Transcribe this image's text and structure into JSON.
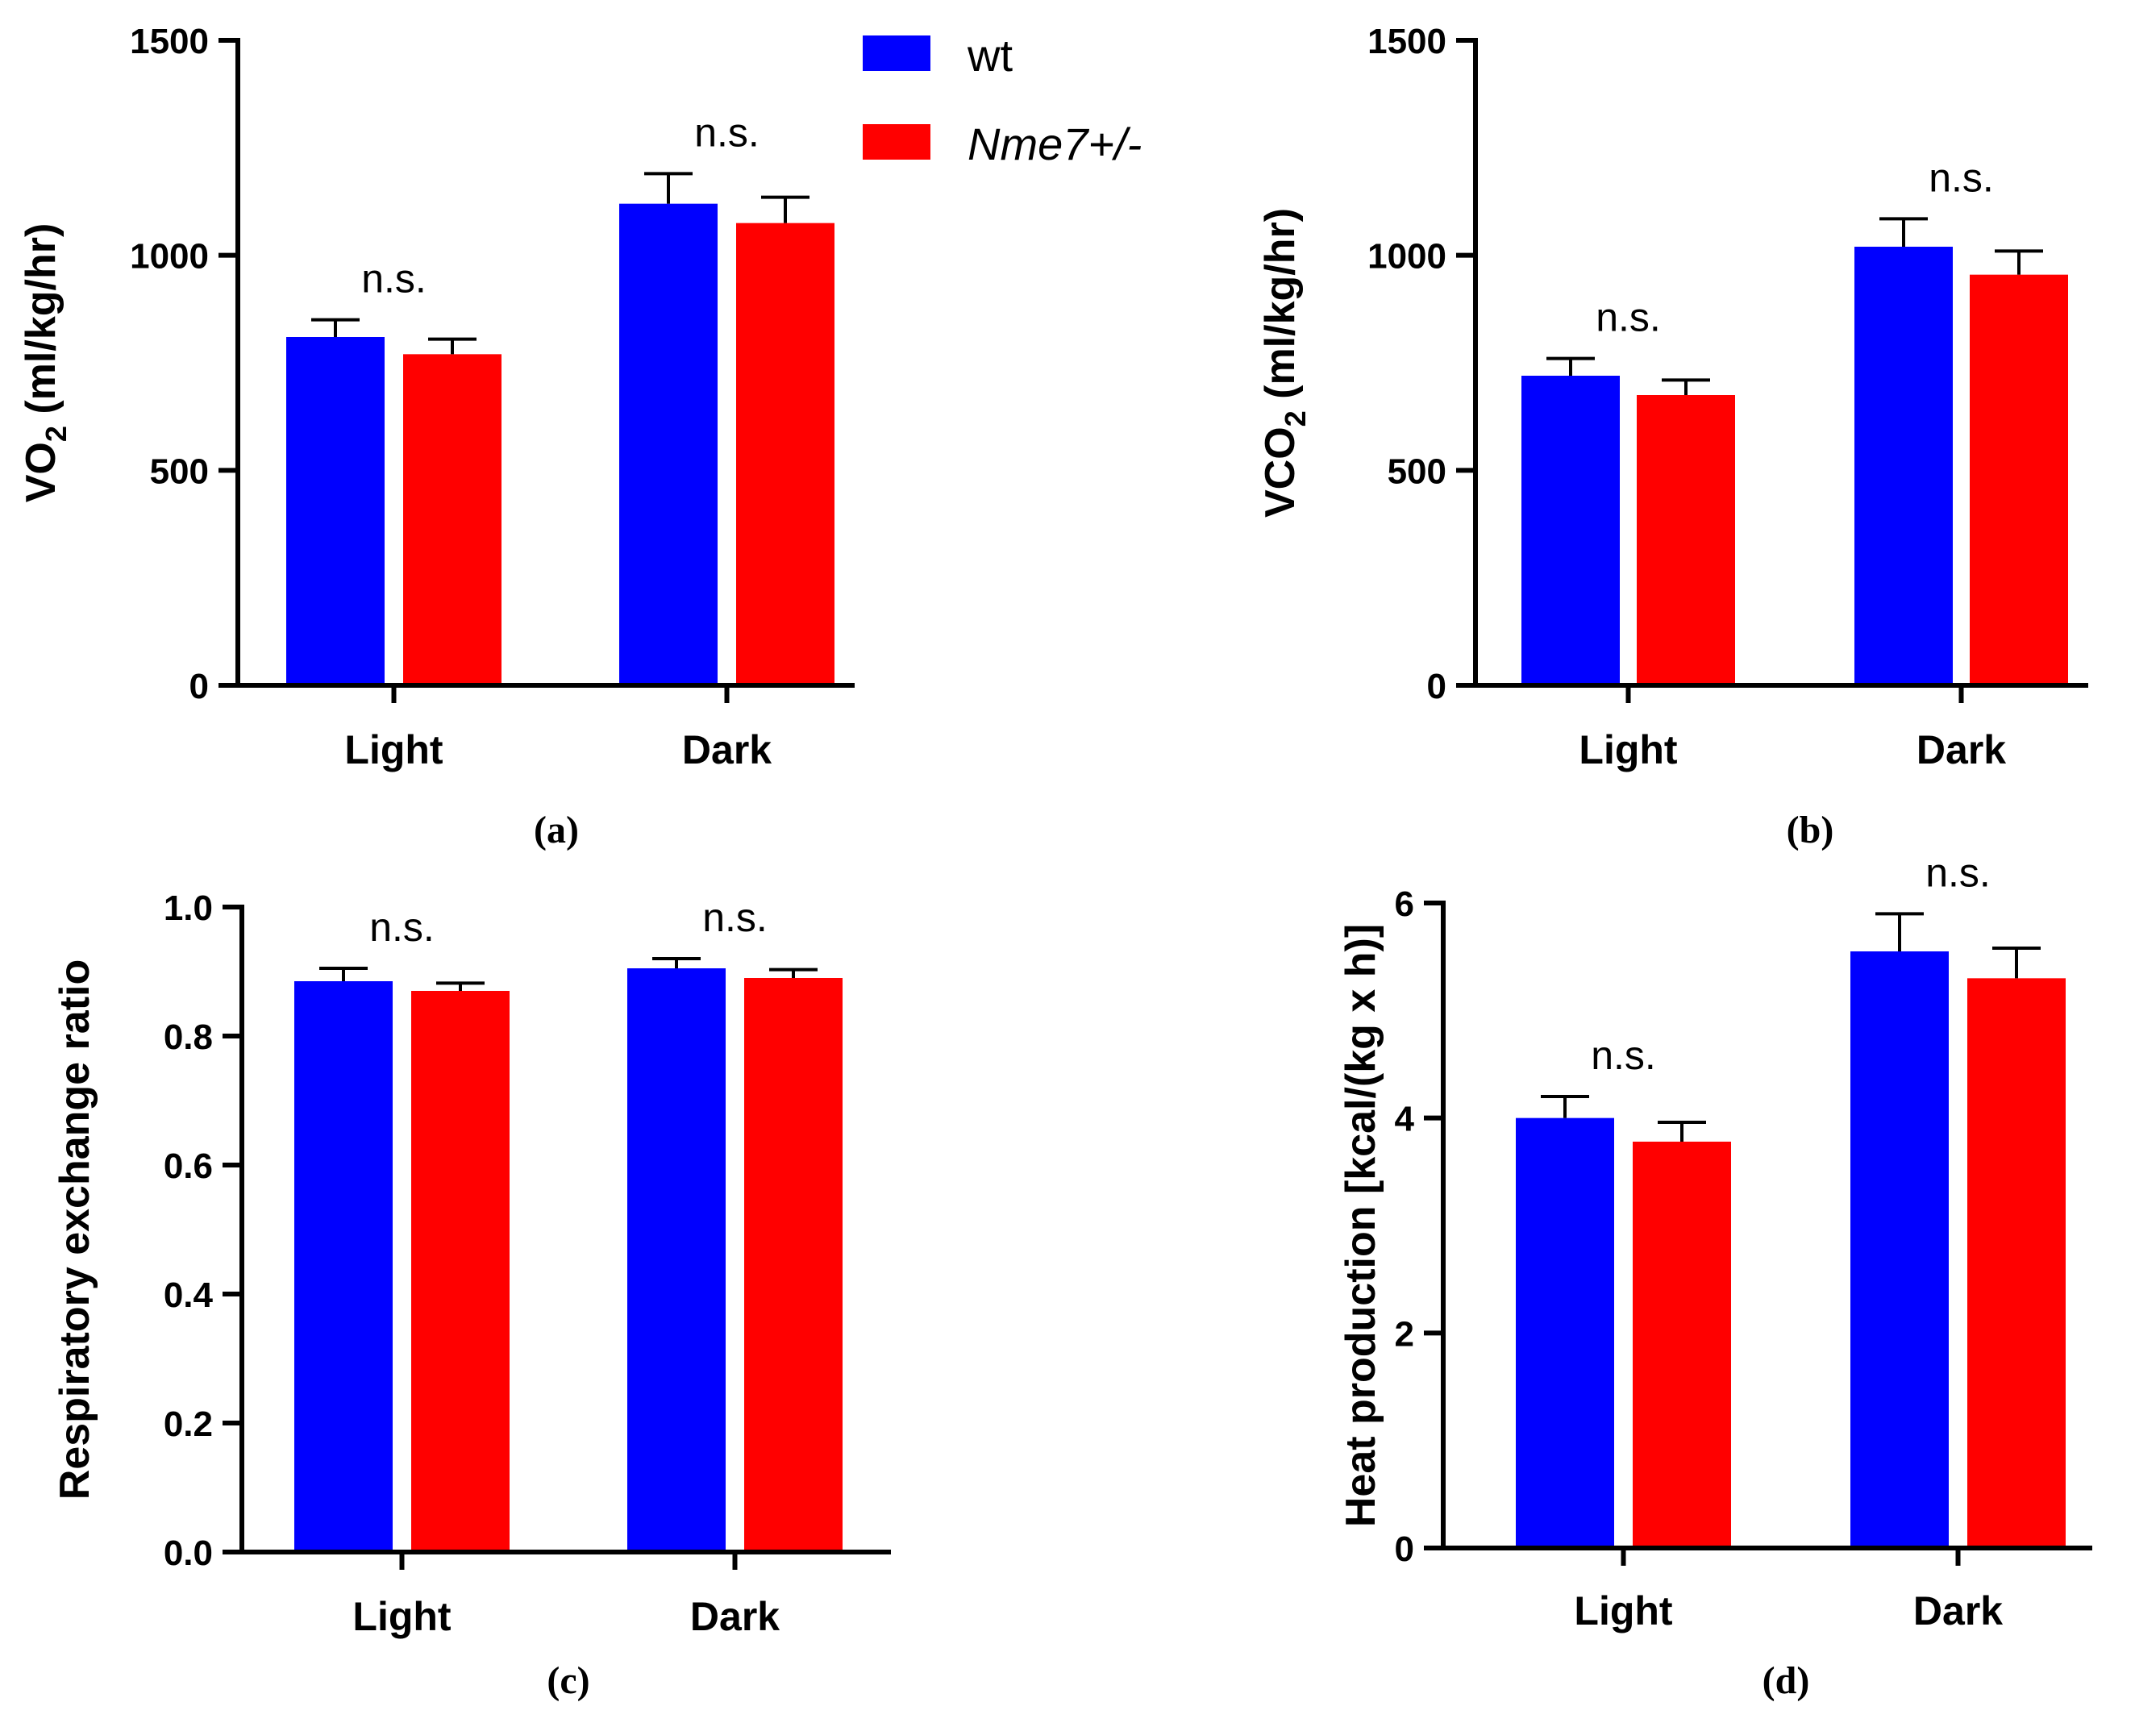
{
  "legend": {
    "items": [
      {
        "label": "wt",
        "italic": false,
        "color": "#0000ff"
      },
      {
        "label": "Nme7+/-",
        "italic": true,
        "color": "#ff0000"
      }
    ]
  },
  "chart_data": [
    {
      "type": "bar",
      "panel": "(a)",
      "ylabel": "VO2 (ml/kg/hr)",
      "ylabel_main": "VO",
      "ylabel_sub": "2",
      "ylabel_rest": " (ml/kg/hr)",
      "ylim": [
        0,
        1500
      ],
      "yticks": [
        0,
        500,
        1000,
        1500
      ],
      "ytick_labels": [
        "0",
        "500",
        "1000",
        "1500"
      ],
      "categories": [
        "Light",
        "Dark"
      ],
      "series": [
        {
          "name": "wt",
          "color": "#0000ff",
          "values": [
            810,
            1120
          ],
          "errors": [
            40,
            70
          ]
        },
        {
          "name": "Nme7+/-",
          "color": "#ff0000",
          "values": [
            770,
            1075
          ],
          "errors": [
            35,
            60
          ]
        }
      ],
      "annotations": [
        "n.s.",
        "n.s."
      ]
    },
    {
      "type": "bar",
      "panel": "(b)",
      "ylabel": "VCO2 (ml/kg/hr)",
      "ylabel_main": "VCO",
      "ylabel_sub": "2",
      "ylabel_rest": " (ml/kg/hr)",
      "ylim": [
        0,
        1500
      ],
      "yticks": [
        0,
        500,
        1000,
        1500
      ],
      "ytick_labels": [
        "0",
        "500",
        "1000",
        "1500"
      ],
      "categories": [
        "Light",
        "Dark"
      ],
      "series": [
        {
          "name": "wt",
          "color": "#0000ff",
          "values": [
            720,
            1020
          ],
          "errors": [
            40,
            65
          ]
        },
        {
          "name": "Nme7+/-",
          "color": "#ff0000",
          "values": [
            675,
            955
          ],
          "errors": [
            35,
            55
          ]
        }
      ],
      "annotations": [
        "n.s.",
        "n.s."
      ]
    },
    {
      "type": "bar",
      "panel": "(c)",
      "ylabel": "Respiratory exchange ratio",
      "ylabel_main": "Respiratory exchange ratio",
      "ylabel_sub": "",
      "ylabel_rest": "",
      "ylim": [
        0,
        1.0
      ],
      "yticks": [
        0,
        0.2,
        0.4,
        0.6,
        0.8,
        1.0
      ],
      "ytick_labels": [
        "0.0",
        "0.2",
        "0.4",
        "0.6",
        "0.8",
        "1.0"
      ],
      "categories": [
        "Light",
        "Dark"
      ],
      "series": [
        {
          "name": "wt",
          "color": "#0000ff",
          "values": [
            0.885,
            0.905
          ],
          "errors": [
            0.02,
            0.015
          ]
        },
        {
          "name": "Nme7+/-",
          "color": "#ff0000",
          "values": [
            0.87,
            0.89
          ],
          "errors": [
            0.012,
            0.013
          ]
        }
      ],
      "annotations": [
        "n.s.",
        "n.s."
      ]
    },
    {
      "type": "bar",
      "panel": "(d)",
      "ylabel": "Heat production [kcal/(kg x h)]",
      "ylabel_main": "Heat production  [kcal/(kg x h)]",
      "ylabel_sub": "",
      "ylabel_rest": "",
      "ylim": [
        0,
        6
      ],
      "yticks": [
        0,
        2,
        4,
        6
      ],
      "ytick_labels": [
        "0",
        "2",
        "4",
        "6"
      ],
      "categories": [
        "Light",
        "Dark"
      ],
      "series": [
        {
          "name": "wt",
          "color": "#0000ff",
          "values": [
            4.0,
            5.55
          ],
          "errors": [
            0.2,
            0.35
          ]
        },
        {
          "name": "Nme7+/-",
          "color": "#ff0000",
          "values": [
            3.78,
            5.3
          ],
          "errors": [
            0.18,
            0.28
          ]
        }
      ],
      "annotations": [
        "n.s.",
        "n.s."
      ]
    }
  ]
}
